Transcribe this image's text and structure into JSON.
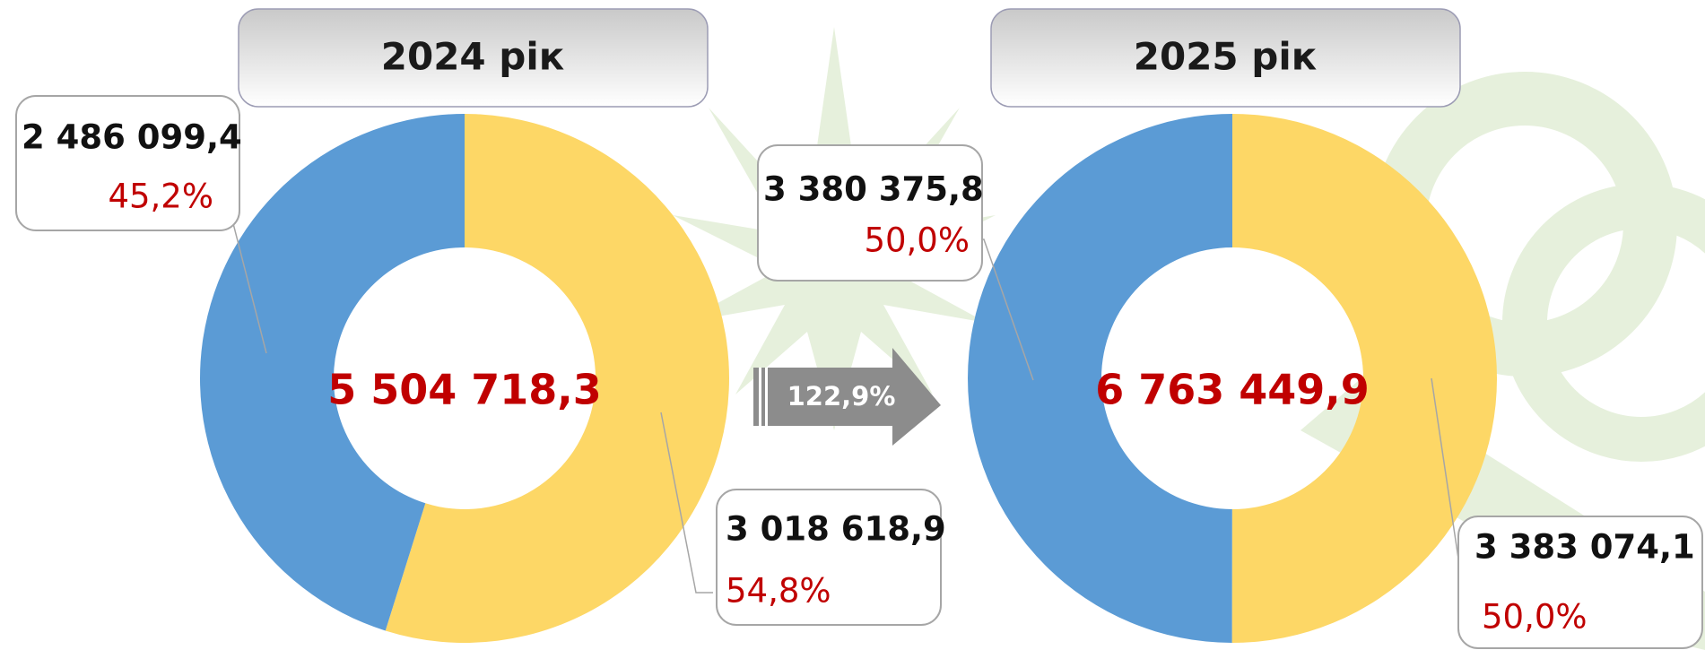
{
  "chart_data": [
    {
      "type": "donut",
      "title": "2024 рік",
      "values": [
        3018618.9,
        2486099.4
      ],
      "value_labels": [
        "3 018 618,9",
        "2 486 099,4"
      ],
      "percents": [
        54.8,
        45.2
      ],
      "percent_labels": [
        "54,8%",
        "45,2%"
      ],
      "colors": [
        "#fdd766",
        "#5b9bd5"
      ],
      "total": {
        "value": 5504718.3,
        "label": "5 504 718,3"
      }
    },
    {
      "type": "donut",
      "title": "2025 рік",
      "values": [
        3383074.1,
        3380375.8
      ],
      "value_labels": [
        "3 383 074,1",
        "3 380 375,8"
      ],
      "percents": [
        50.0,
        50.0
      ],
      "percent_labels": [
        "50,0%",
        "50,0%"
      ],
      "colors": [
        "#fdd766",
        "#5b9bd5"
      ],
      "total": {
        "value": 6763449.9,
        "label": "6 763 449,9"
      }
    }
  ],
  "growth": {
    "value": 122.9,
    "label": "122,9%"
  }
}
